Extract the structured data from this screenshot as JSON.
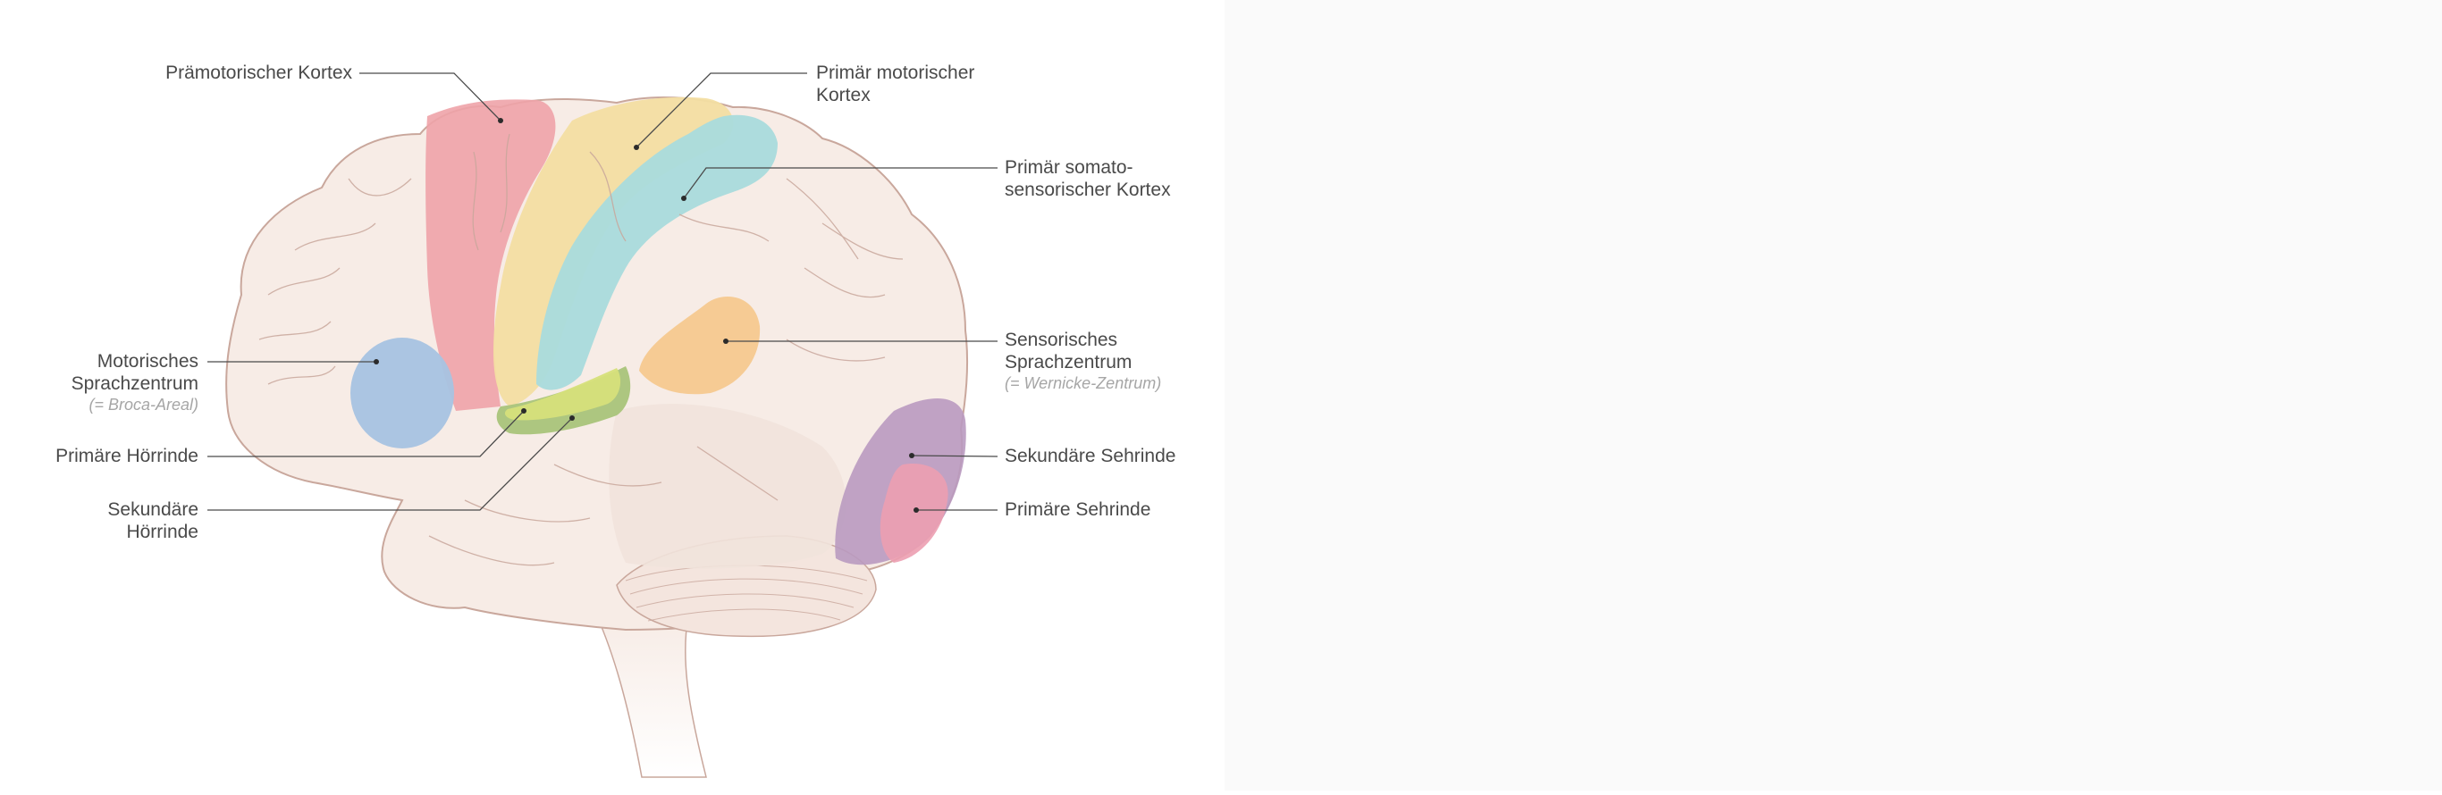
{
  "labels": {
    "premotor": [
      "Prämotorischer Kortex"
    ],
    "primary_motor": [
      "Primär motorischer",
      "Kortex"
    ],
    "somatosensory": [
      "Primär somato-",
      "sensorischer Kortex"
    ],
    "motor_speech": [
      "Motorisches",
      "Sprachzentrum"
    ],
    "motor_speech_note": "(= Broca-Areal)",
    "sensory_speech": [
      "Sensorisches",
      "Sprachzentrum"
    ],
    "sensory_speech_note": "(= Wernicke-Zentrum)",
    "primary_auditory": [
      "Primäre Hörrinde"
    ],
    "secondary_visual": [
      "Sekundäre Sehrinde"
    ],
    "secondary_auditory": [
      "Sekundäre",
      "Hörrinde"
    ],
    "primary_visual": [
      "Primäre Sehrinde"
    ]
  },
  "colors": {
    "brain": "#f7ece6",
    "brain_outline": "#c9a79c",
    "premotor": "#eea3a9",
    "primary_motor": "#f3dea2",
    "somatosensory": "#a9dbdc",
    "broca": "#a6c3e1",
    "wernicke": "#f6c98f",
    "primary_auditory": "#d6e07a",
    "secondary_auditory": "#a9c47a",
    "secondary_visual": "#b99ac0",
    "primary_visual": "#ec9fb1",
    "leader": "#4a4a4a"
  }
}
